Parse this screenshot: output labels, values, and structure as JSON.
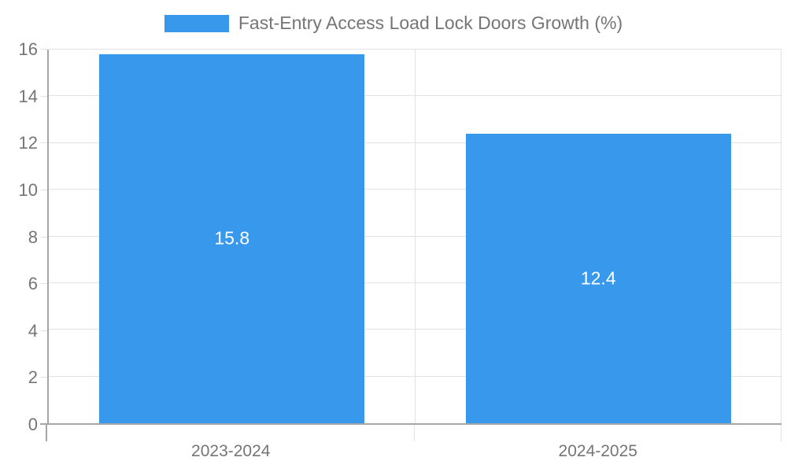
{
  "chart_data": {
    "type": "bar",
    "title": "Fast-Entry Access Load Lock Doors Growth (%)",
    "categories": [
      "2023-2024",
      "2024-2025"
    ],
    "values": [
      15.8,
      12.4
    ],
    "value_labels": [
      "15.8",
      "12.4"
    ],
    "ylabel": "",
    "xlabel": "",
    "ylim": [
      0,
      16
    ],
    "ytick_step": 2,
    "ytick_labels": [
      "0",
      "2",
      "4",
      "6",
      "8",
      "10",
      "12",
      "14",
      "16"
    ],
    "grid": true,
    "legend_position": "top-center",
    "bar_width_fraction_of_category": 0.725
  },
  "colors": {
    "bar": "#3899ec",
    "bar_value_label": "#ffffff",
    "axis": "#a6a6a6",
    "grid": "#e2e2e2",
    "text": "#757575",
    "background": "#ffffff"
  }
}
